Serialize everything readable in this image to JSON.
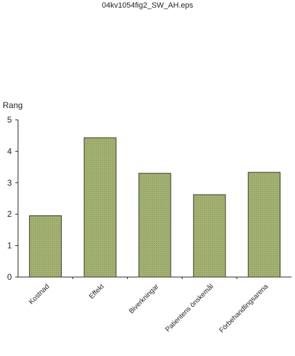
{
  "header": {
    "file_name": "04kv1054fig2_SW_AH.eps"
  },
  "chart_data": {
    "type": "bar",
    "title": "",
    "xlabel": "",
    "ylabel": "Rang",
    "categories": [
      "Kostnad",
      "Effekt",
      "Biverkningar",
      "Patientens önskemål",
      "Förbehandlingsarena"
    ],
    "values": [
      1.95,
      4.43,
      3.3,
      2.62,
      3.33
    ],
    "ylim": [
      0,
      5
    ],
    "yticks": [
      "0",
      "1",
      "2",
      "3",
      "4",
      "5"
    ],
    "grid": false,
    "legend": "none",
    "bar_color": "#9aaa6a",
    "bar_stroke": "#3a3a2a"
  }
}
